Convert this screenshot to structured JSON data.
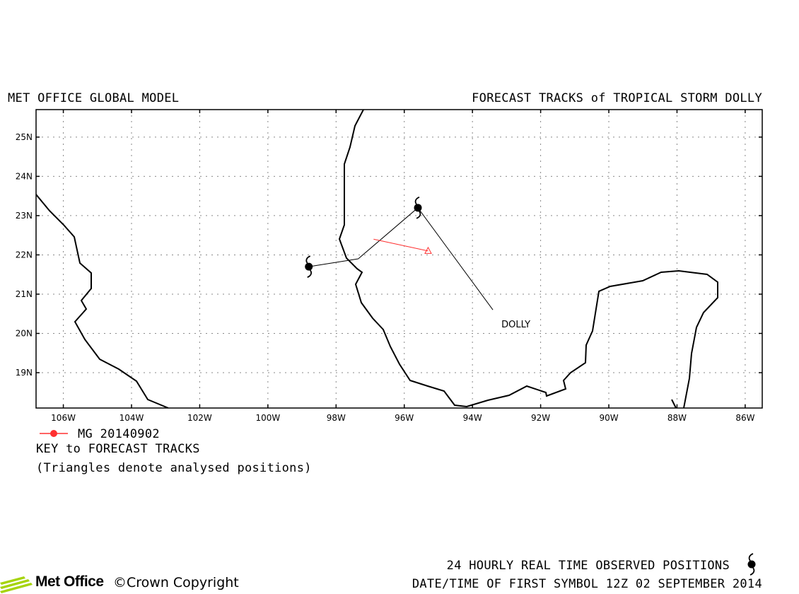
{
  "header": {
    "left_title": "MET OFFICE GLOBAL MODEL",
    "right_title": "FORECAST TRACKS of TROPICAL STORM DOLLY"
  },
  "map": {
    "lon_range": [
      -106.8,
      -85.5
    ],
    "lat_range": [
      18.1,
      25.7
    ],
    "lat_ticks": [
      {
        "value": 19,
        "label": "19N"
      },
      {
        "value": 20,
        "label": "20N"
      },
      {
        "value": 21,
        "label": "21N"
      },
      {
        "value": 22,
        "label": "22N"
      },
      {
        "value": 23,
        "label": "23N"
      },
      {
        "value": 24,
        "label": "24N"
      },
      {
        "value": 25,
        "label": "25N"
      }
    ],
    "lon_ticks": [
      {
        "value": -106,
        "label": "106W"
      },
      {
        "value": -104,
        "label": "104W"
      },
      {
        "value": -102,
        "label": "102W"
      },
      {
        "value": -100,
        "label": "100W"
      },
      {
        "value": -98,
        "label": "98W"
      },
      {
        "value": -96,
        "label": "96W"
      },
      {
        "value": -94,
        "label": "94W"
      },
      {
        "value": -92,
        "label": "92W"
      },
      {
        "value": -90,
        "label": "90W"
      },
      {
        "value": -88,
        "label": "88W"
      },
      {
        "value": -86,
        "label": "86W"
      }
    ],
    "grid": "dotted",
    "observed_track": [
      {
        "lon": -98.8,
        "lat": 21.7
      },
      {
        "lon": -97.35,
        "lat": 21.9
      },
      {
        "lon": -95.6,
        "lat": 23.2
      }
    ],
    "observed_symbols": [
      {
        "lon": -98.8,
        "lat": 21.7
      },
      {
        "lon": -95.6,
        "lat": 23.2
      }
    ],
    "forecast_track": {
      "name": "MG 20140902",
      "color": "#ff3030",
      "points": [
        {
          "lon": -96.9,
          "lat": 22.4
        },
        {
          "lon": -95.3,
          "lat": 22.1
        }
      ]
    },
    "storm_label": {
      "text": "DOLLY",
      "leader_from": {
        "lon": -95.6,
        "lat": 23.2
      },
      "leader_to": {
        "lon": -93.4,
        "lat": 20.6
      }
    }
  },
  "legend": {
    "entry_label": "MG 20140902",
    "entry_color": "#ff3030",
    "key_title": "KEY to FORECAST TRACKS",
    "note": "(Triangles denote analysed positions)"
  },
  "footer": {
    "observed_note": "24 HOURLY REAL TIME OBSERVED POSITIONS",
    "first_symbol": "DATE/TIME OF FIRST SYMBOL 12Z 02 SEPTEMBER 2014",
    "brand": "Met Office",
    "copyright": "©Crown Copyright",
    "brand_color": "#a6d40e"
  }
}
